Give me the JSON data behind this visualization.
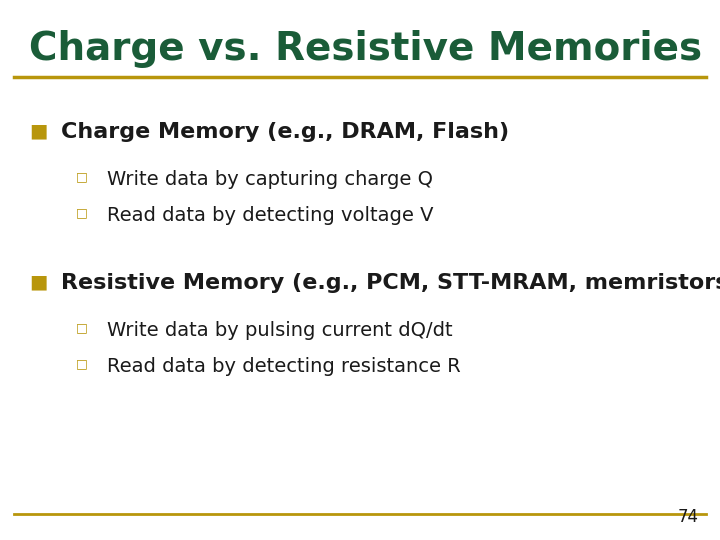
{
  "title": "Charge vs. Resistive Memories",
  "title_color": "#1a5c38",
  "separator_color": "#b8960c",
  "background_color": "#ffffff",
  "slide_number": "74",
  "bullet_color": "#b8960c",
  "sub_bullet_color": "#b8960c",
  "text_color": "#1a1a1a",
  "bullet1_text": "Charge Memory (e.g., DRAM, Flash)",
  "bullet1_sub": [
    "Write data by capturing charge Q",
    "Read data by detecting voltage V"
  ],
  "bullet2_text": "Resistive Memory (e.g., PCM, STT-MRAM, memristors)",
  "bullet2_sub": [
    "Write data by pulsing current dQ/dt",
    "Read data by detecting resistance R"
  ]
}
